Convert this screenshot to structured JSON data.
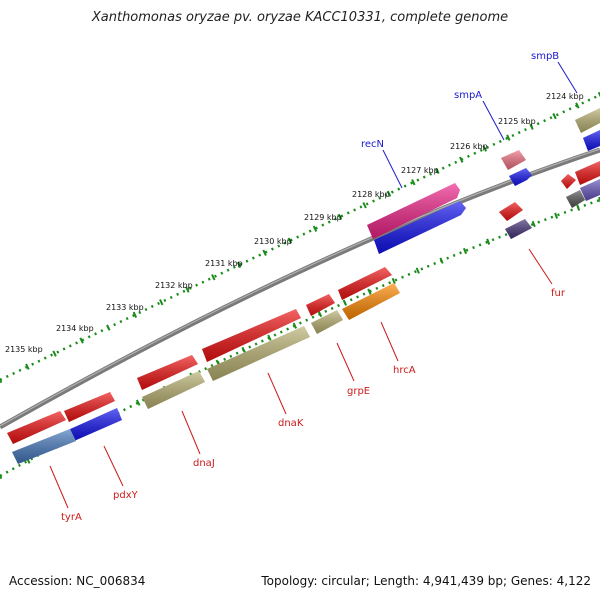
{
  "title": "Xanthomonas oryzae pv. oryzae KACC10331, complete genome",
  "footer": {
    "accession": "Accession: NC_006834",
    "summary": "Topology: circular; Length: 4,941,439 bp; Genes: 4,122"
  },
  "colors": {
    "backbone": "#808080",
    "tick_ring": "#1a8c1a",
    "label_blue": "#1a1acc",
    "label_red": "#cc1a1a",
    "gene_red": "#ee1111",
    "gene_blue": "#1111ee",
    "gene_olive": "#b8b070",
    "gene_orange": "#ff8800",
    "gene_magenta": "#ee2288",
    "gene_pink": "#ee6677",
    "gene_steel": "#4477bb",
    "gene_navy": "#443377",
    "gene_purple": "#6655bb",
    "gene_gray": "#555555"
  },
  "tick_labels": [
    "2124 kbp",
    "2125 kbp",
    "2126 kbp",
    "2127 kbp",
    "2128 kbp",
    "2129 kbp",
    "2130 kbp",
    "2131 kbp",
    "2132 kbp",
    "2133 kbp",
    "2134 kbp",
    "2135 kbp"
  ],
  "gene_labels": [
    "smpB",
    "smpA",
    "recN",
    "fur",
    "hrcA",
    "grpE",
    "dnaK",
    "dnaJ",
    "pdxY",
    "tyrA"
  ]
}
